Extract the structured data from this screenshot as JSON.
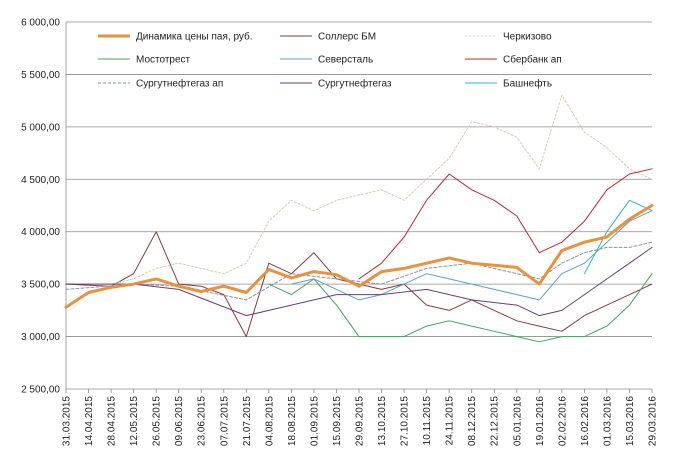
{
  "chart_data": {
    "type": "line",
    "title": "",
    "xlabel": "",
    "ylabel": "",
    "ylim": [
      2500,
      6000
    ],
    "y_ticks": [
      2500,
      3000,
      3500,
      4000,
      4500,
      5000,
      5500,
      6000
    ],
    "y_tick_labels": [
      "2 500,00",
      "3 000,00",
      "3 500,00",
      "4 000,00",
      "4 500,00",
      "5 000,00",
      "5 500,00",
      "6 000,00"
    ],
    "x_tick_labels": [
      "31.03.2015",
      "14.04.2015",
      "28.04.2015",
      "12.05.2015",
      "26.05.2015",
      "09.06.2015",
      "23.06.2015",
      "07.07.2015",
      "21.07.2015",
      "04.08.2015",
      "18.08.2015",
      "01.09.2015",
      "15.09.2015",
      "29.09.2015",
      "13.10.2015",
      "27.10.2015",
      "10.11.2015",
      "24.11.2015",
      "08.12.2015",
      "22.12.2015",
      "05.01.2016",
      "19.01.2016",
      "02.02.2016",
      "16.02.2016",
      "01.03.2016",
      "15.03.2016",
      "29.03.2016"
    ],
    "grid": true,
    "legend_position": "top",
    "series": [
      {
        "name": "Динамика цены пая, руб.",
        "color": "#E8913F",
        "width": 3,
        "dash": "",
        "points": [
          [
            0,
            3280
          ],
          [
            1,
            3420
          ],
          [
            2,
            3470
          ],
          [
            3,
            3500
          ],
          [
            4,
            3550
          ],
          [
            5,
            3480
          ],
          [
            6,
            3430
          ],
          [
            7,
            3480
          ],
          [
            8,
            3420
          ],
          [
            9,
            3640
          ],
          [
            10,
            3560
          ],
          [
            11,
            3620
          ],
          [
            12,
            3590
          ],
          [
            13,
            3480
          ],
          [
            14,
            3620
          ],
          [
            15,
            3650
          ],
          [
            16,
            3700
          ],
          [
            17,
            3750
          ],
          [
            18,
            3700
          ],
          [
            19,
            3680
          ],
          [
            20,
            3660
          ],
          [
            21,
            3500
          ],
          [
            22,
            3820
          ],
          [
            23,
            3900
          ],
          [
            24,
            3950
          ],
          [
            25,
            4120
          ],
          [
            26,
            4250
          ]
        ]
      },
      {
        "name": "Соллерс БМ",
        "color": "#8B3A3A",
        "width": 1,
        "dash": "",
        "points": [
          [
            0,
            3500
          ],
          [
            2,
            3480
          ],
          [
            3,
            3600
          ],
          [
            4,
            4000
          ],
          [
            5,
            3500
          ],
          [
            6,
            3480
          ],
          [
            7,
            3400
          ],
          [
            8,
            3000
          ],
          [
            9,
            3700
          ],
          [
            10,
            3600
          ],
          [
            11,
            3800
          ],
          [
            12,
            3550
          ],
          [
            13,
            3500
          ],
          [
            14,
            3450
          ],
          [
            15,
            3500
          ],
          [
            16,
            3300
          ],
          [
            17,
            3250
          ],
          [
            18,
            3350
          ],
          [
            19,
            3250
          ],
          [
            20,
            3150
          ],
          [
            21,
            3100
          ],
          [
            22,
            3050
          ],
          [
            23,
            3200
          ],
          [
            24,
            3300
          ],
          [
            25,
            3400
          ],
          [
            26,
            3500
          ]
        ]
      },
      {
        "name": "Черкизово",
        "color": "#D9C9A8",
        "width": 1,
        "dash": "2,2",
        "points": [
          [
            2,
            3500
          ],
          [
            3,
            3550
          ],
          [
            4,
            3650
          ],
          [
            5,
            3700
          ],
          [
            6,
            3650
          ],
          [
            7,
            3600
          ],
          [
            8,
            3700
          ],
          [
            9,
            4100
          ],
          [
            10,
            4300
          ],
          [
            11,
            4200
          ],
          [
            12,
            4300
          ],
          [
            13,
            4350
          ],
          [
            14,
            4400
          ],
          [
            15,
            4300
          ],
          [
            16,
            4500
          ],
          [
            17,
            4700
          ],
          [
            18,
            5050
          ],
          [
            19,
            5000
          ],
          [
            20,
            4900
          ],
          [
            21,
            4600
          ],
          [
            22,
            5300
          ],
          [
            23,
            4950
          ],
          [
            24,
            4800
          ],
          [
            25,
            4600
          ],
          [
            26,
            4500
          ]
        ]
      },
      {
        "name": "Мостотрест",
        "color": "#3CA55C",
        "width": 1,
        "dash": "",
        "points": [
          [
            9,
            3500
          ],
          [
            10,
            3400
          ],
          [
            11,
            3550
          ],
          [
            12,
            3300
          ],
          [
            13,
            3000
          ],
          [
            14,
            3000
          ],
          [
            15,
            3000
          ],
          [
            16,
            3100
          ],
          [
            17,
            3150
          ],
          [
            18,
            3100
          ],
          [
            19,
            3050
          ],
          [
            20,
            3000
          ],
          [
            21,
            2950
          ],
          [
            22,
            3000
          ],
          [
            23,
            3000
          ],
          [
            24,
            3100
          ],
          [
            25,
            3300
          ],
          [
            26,
            3600
          ]
        ]
      },
      {
        "name": "Северсталь",
        "color": "#5AA3C8",
        "width": 1,
        "dash": "",
        "points": [
          [
            10,
            3500
          ],
          [
            11,
            3550
          ],
          [
            12,
            3450
          ],
          [
            13,
            3350
          ],
          [
            14,
            3400
          ],
          [
            15,
            3500
          ],
          [
            16,
            3600
          ],
          [
            17,
            3550
          ],
          [
            18,
            3500
          ],
          [
            19,
            3450
          ],
          [
            20,
            3400
          ],
          [
            21,
            3350
          ],
          [
            22,
            3600
          ],
          [
            23,
            3700
          ],
          [
            24,
            3900
          ],
          [
            25,
            4100
          ],
          [
            26,
            4200
          ]
        ]
      },
      {
        "name": "Сбербанк ап",
        "color": "#C0282D",
        "width": 1,
        "dash": "",
        "points": [
          [
            13,
            3550
          ],
          [
            14,
            3700
          ],
          [
            15,
            3950
          ],
          [
            16,
            4300
          ],
          [
            17,
            4550
          ],
          [
            18,
            4400
          ],
          [
            19,
            4300
          ],
          [
            20,
            4150
          ],
          [
            21,
            3800
          ],
          [
            22,
            3900
          ],
          [
            23,
            4100
          ],
          [
            24,
            4400
          ],
          [
            25,
            4550
          ],
          [
            26,
            4600
          ]
        ]
      },
      {
        "name": "Сургутнефтегаз ап",
        "color": "#8A8FB5",
        "width": 1,
        "dash": "3,2",
        "points": [
          [
            0,
            3450
          ],
          [
            3,
            3500
          ],
          [
            5,
            3480
          ],
          [
            8,
            3350
          ],
          [
            10,
            3600
          ],
          [
            12,
            3550
          ],
          [
            14,
            3500
          ],
          [
            16,
            3650
          ],
          [
            18,
            3700
          ],
          [
            20,
            3600
          ],
          [
            21,
            3550
          ],
          [
            22,
            3700
          ],
          [
            23,
            3800
          ],
          [
            24,
            3850
          ],
          [
            25,
            3850
          ],
          [
            26,
            3900
          ]
        ]
      },
      {
        "name": "Сургутнефтегаз",
        "color": "#6B3D7A",
        "width": 1,
        "dash": "",
        "points": [
          [
            0,
            3500
          ],
          [
            3,
            3500
          ],
          [
            5,
            3450
          ],
          [
            8,
            3200
          ],
          [
            10,
            3300
          ],
          [
            12,
            3400
          ],
          [
            14,
            3400
          ],
          [
            16,
            3450
          ],
          [
            18,
            3350
          ],
          [
            20,
            3300
          ],
          [
            21,
            3200
          ],
          [
            22,
            3250
          ],
          [
            23,
            3400
          ],
          [
            24,
            3550
          ],
          [
            25,
            3700
          ],
          [
            26,
            3850
          ]
        ]
      },
      {
        "name": "Башнефть",
        "color": "#2BB5C8",
        "width": 1,
        "dash": "",
        "points": [
          [
            23,
            3600
          ],
          [
            24,
            4000
          ],
          [
            25,
            4300
          ],
          [
            26,
            4200
          ]
        ]
      }
    ]
  }
}
